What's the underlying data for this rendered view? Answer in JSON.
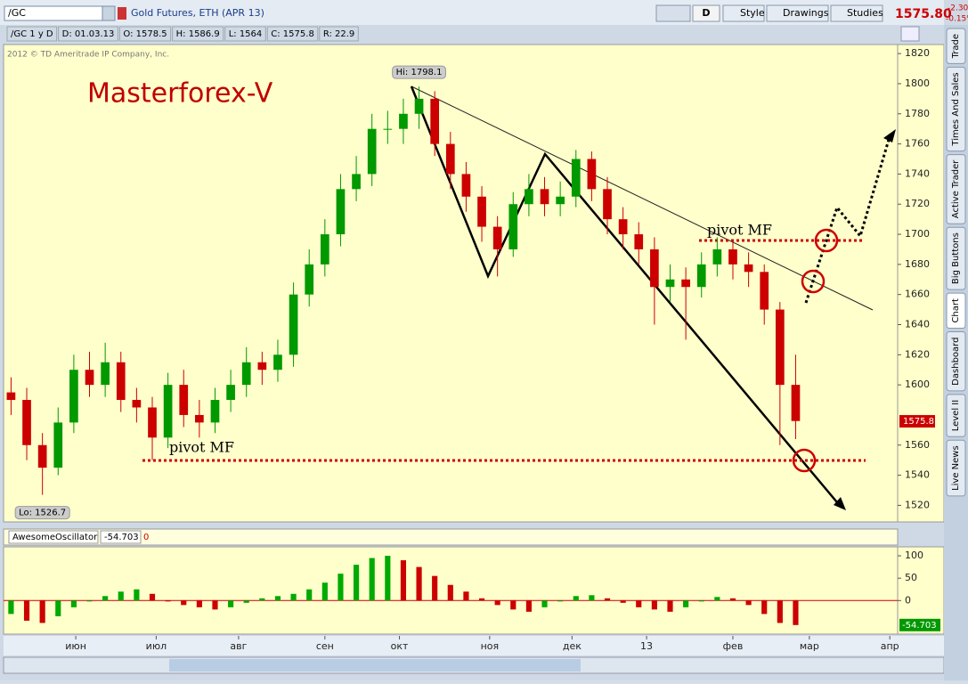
{
  "header": {
    "symbol": "/GC",
    "description": "Gold Futures, ETH (APR 13)",
    "aggregation": "D",
    "buttons": [
      "Style",
      "Drawings",
      "Studies"
    ],
    "last": "1575.80",
    "change": "-2.30",
    "change_pct": "-0.15%"
  },
  "info": [
    "/GC 1 y D",
    "D: 01.03.13",
    "O: 1578.5",
    "H: 1586.9",
    "L: 1564",
    "C: 1575.8",
    "R: 22.9"
  ],
  "copyright": "2012 © TD Ameritrade IP Company, Inc.",
  "watermark": "Masterforex-V",
  "annotations": [
    "pivot MF",
    "pivot MF"
  ],
  "side_tabs": [
    "Trade",
    "Times And Sales",
    "Active Trader",
    "Big Buttons",
    "Chart",
    "Dashboard",
    "Level II",
    "Live News"
  ],
  "chart_data": {
    "type": "candlestick",
    "x": [
      1,
      5,
      9,
      13,
      17,
      21,
      25,
      29,
      33,
      37,
      41,
      45,
      49,
      53,
      57,
      61,
      65,
      69,
      73,
      77,
      81,
      85,
      89,
      93,
      97,
      101,
      105,
      109,
      113,
      117,
      121,
      125,
      129,
      133,
      137,
      141,
      145,
      149,
      153,
      157,
      161,
      165,
      169,
      173,
      177,
      181,
      185,
      189,
      193,
      197,
      201
    ],
    "open": [
      1595,
      1590,
      1560,
      1545,
      1575,
      1610,
      1600,
      1615,
      1590,
      1585,
      1565,
      1600,
      1580,
      1575,
      1590,
      1600,
      1615,
      1610,
      1620,
      1660,
      1680,
      1700,
      1730,
      1740,
      1770,
      1770,
      1780,
      1790,
      1760,
      1740,
      1725,
      1705,
      1690,
      1720,
      1730,
      1720,
      1725,
      1750,
      1730,
      1710,
      1700,
      1690,
      1665,
      1670,
      1665,
      1680,
      1690,
      1680,
      1675,
      1650,
      1600
    ],
    "high": [
      1605,
      1598,
      1568,
      1585,
      1620,
      1622,
      1628,
      1622,
      1598,
      1592,
      1608,
      1610,
      1590,
      1598,
      1610,
      1625,
      1622,
      1630,
      1668,
      1690,
      1710,
      1740,
      1752,
      1780,
      1782,
      1790,
      1798.1,
      1795,
      1768,
      1748,
      1732,
      1712,
      1728,
      1740,
      1738,
      1735,
      1756,
      1755,
      1738,
      1718,
      1708,
      1698,
      1680,
      1678,
      1688,
      1698,
      1696,
      1688,
      1680,
      1655,
      1620
    ],
    "low": [
      1580,
      1550,
      1527,
      1540,
      1568,
      1592,
      1592,
      1582,
      1575,
      1550,
      1558,
      1572,
      1565,
      1568,
      1582,
      1592,
      1600,
      1602,
      1612,
      1652,
      1672,
      1692,
      1722,
      1732,
      1760,
      1760,
      1770,
      1752,
      1730,
      1715,
      1695,
      1672,
      1685,
      1712,
      1712,
      1712,
      1718,
      1722,
      1700,
      1690,
      1680,
      1640,
      1655,
      1630,
      1658,
      1672,
      1670,
      1665,
      1640,
      1560,
      1564
    ],
    "close": [
      1590,
      1560,
      1545,
      1575,
      1610,
      1600,
      1615,
      1590,
      1585,
      1565,
      1600,
      1580,
      1575,
      1590,
      1600,
      1615,
      1610,
      1620,
      1660,
      1680,
      1700,
      1730,
      1740,
      1770,
      1770,
      1780,
      1790,
      1760,
      1740,
      1725,
      1705,
      1690,
      1720,
      1730,
      1720,
      1725,
      1750,
      1730,
      1710,
      1700,
      1690,
      1665,
      1670,
      1665,
      1680,
      1690,
      1680,
      1675,
      1650,
      1600,
      1576
    ],
    "up_color": "#009900",
    "down_color": "#cc0000",
    "hi_label": "Hi: 1798.1",
    "lo_label": "Lo: 1526.7",
    "last_price": 1575.8,
    "xlim": [
      0,
      227
    ],
    "xticks": [
      {
        "value": 17.5,
        "label": "июн"
      },
      {
        "value": 38,
        "label": "июл"
      },
      {
        "value": 59,
        "label": "авг"
      },
      {
        "value": 81,
        "label": "сен"
      },
      {
        "value": 100,
        "label": "окт"
      },
      {
        "value": 123,
        "label": "ноя"
      },
      {
        "value": 144,
        "label": "дек"
      },
      {
        "value": 163,
        "label": "13"
      },
      {
        "value": 185,
        "label": "фев"
      },
      {
        "value": 204.5,
        "label": "мар"
      },
      {
        "value": 225,
        "label": "апр"
      }
    ],
    "ylim": [
      1509,
      1826
    ],
    "yticks": [
      1520,
      1540,
      1560,
      1600,
      1620,
      1640,
      1660,
      1680,
      1700,
      1720,
      1740,
      1760,
      1780,
      1800,
      1820
    ],
    "oscillator": {
      "type": "bar",
      "name": "AwesomeOscillator",
      "param": "0",
      "ylim": [
        -75,
        120
      ],
      "yticks": [
        0,
        50,
        100
      ],
      "values": [
        -30,
        -45,
        -50,
        -35,
        -15,
        0,
        10,
        20,
        25,
        15,
        0,
        -10,
        -15,
        -20,
        -15,
        -5,
        5,
        10,
        15,
        25,
        40,
        60,
        80,
        95,
        100,
        90,
        75,
        55,
        35,
        20,
        5,
        -10,
        -20,
        -25,
        -15,
        0,
        10,
        12,
        5,
        -5,
        -15,
        -20,
        -25,
        -15,
        0,
        8,
        5,
        -10,
        -30,
        -50,
        -54.703
      ],
      "up_color": "#00aa00",
      "down_color": "#cc0000"
    }
  }
}
